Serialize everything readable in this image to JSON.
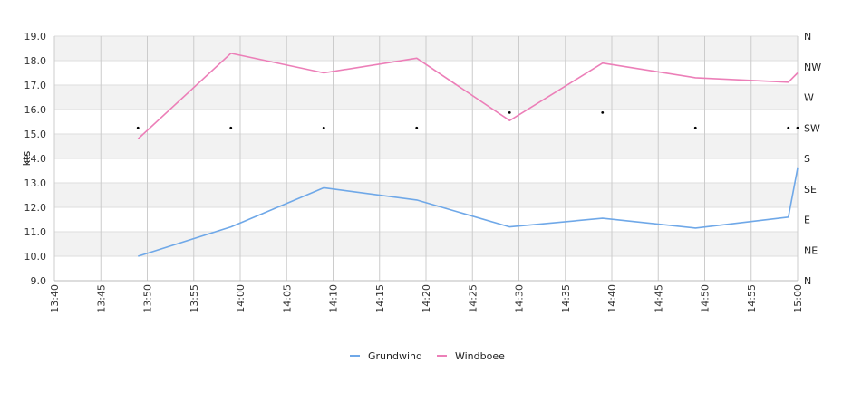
{
  "chart_data": {
    "type": "line",
    "ylabel": "kts",
    "xlabel": "",
    "ylim": [
      9.0,
      19.0
    ],
    "y_ticks": [
      "9.0",
      "10.0",
      "11.0",
      "12.0",
      "13.0",
      "14.0",
      "15.0",
      "16.0",
      "17.0",
      "18.0",
      "19.0"
    ],
    "x_ticks": [
      "13:40",
      "13:45",
      "13:50",
      "13:55",
      "14:00",
      "14:05",
      "14:10",
      "14:15",
      "14:20",
      "14:25",
      "14:30",
      "14:35",
      "14:40",
      "14:45",
      "14:50",
      "14:55",
      "15:00"
    ],
    "xlim": [
      "13:40",
      "15:00"
    ],
    "direction_axis": {
      "labels": [
        "N",
        "NE",
        "E",
        "SE",
        "S",
        "SW",
        "W",
        "NW",
        "N"
      ],
      "range_degrees": [
        0,
        360
      ]
    },
    "grid": true,
    "legend_position": "bottom-center",
    "series": [
      {
        "name": "Grundwind",
        "color": "#6fa8e8",
        "x": [
          "13:49",
          "13:59",
          "14:09",
          "14:19",
          "14:29",
          "14:39",
          "14:49",
          "14:59",
          "15:00"
        ],
        "values": [
          10.0,
          11.2,
          12.8,
          12.3,
          11.2,
          11.55,
          11.15,
          11.6,
          13.6
        ]
      },
      {
        "name": "Windboee",
        "color": "#ec7fb8",
        "x": [
          "13:49",
          "13:59",
          "14:09",
          "14:19",
          "14:29",
          "14:39",
          "14:49",
          "14:59",
          "15:00"
        ],
        "values": [
          14.8,
          18.3,
          17.5,
          18.1,
          15.55,
          17.9,
          17.3,
          17.12,
          17.5
        ]
      }
    ],
    "direction_points": {
      "x": [
        "13:49",
        "13:59",
        "14:09",
        "14:19",
        "14:29",
        "14:39",
        "14:49",
        "14:59",
        "15:00"
      ],
      "degrees": [
        225,
        225,
        225,
        225,
        247.5,
        247.5,
        225,
        225,
        225
      ]
    }
  }
}
